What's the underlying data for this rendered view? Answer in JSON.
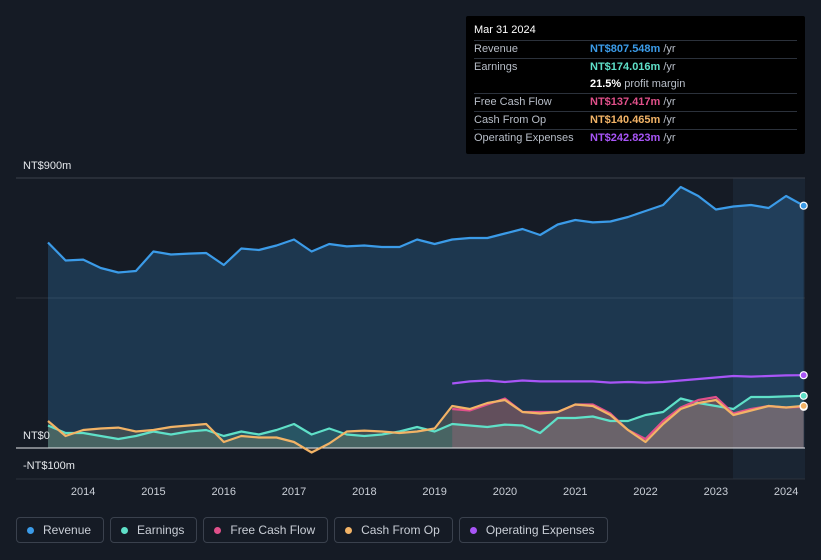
{
  "tooltip": {
    "date": "Mar 31 2024",
    "rows": [
      {
        "label": "Revenue",
        "value": "NT$807.548m",
        "unit": "/yr",
        "color": "#3b9be8"
      },
      {
        "label": "Earnings",
        "value": "NT$174.016m",
        "unit": "/yr",
        "color": "#5fe0c8"
      },
      {
        "label": "",
        "value": "21.5%",
        "unit": "profit margin",
        "color": "#ffffff"
      },
      {
        "label": "Free Cash Flow",
        "value": "NT$137.417m",
        "unit": "/yr",
        "color": "#e0508a"
      },
      {
        "label": "Cash From Op",
        "value": "NT$140.465m",
        "unit": "/yr",
        "color": "#f2b366"
      },
      {
        "label": "Operating Expenses",
        "value": "NT$242.823m",
        "unit": "/yr",
        "color": "#a855f7"
      }
    ]
  },
  "legend": [
    {
      "label": "Revenue",
      "color": "#3b9be8"
    },
    {
      "label": "Earnings",
      "color": "#5fe0c8"
    },
    {
      "label": "Free Cash Flow",
      "color": "#e0508a"
    },
    {
      "label": "Cash From Op",
      "color": "#f2b366"
    },
    {
      "label": "Operating Expenses",
      "color": "#a855f7"
    }
  ],
  "chart_data": {
    "type": "area",
    "title": "",
    "xlabel": "",
    "ylabel": "",
    "ylim": [
      -100,
      900
    ],
    "y_tick_labels": [
      "NT$900m",
      "NT$0",
      "-NT$100m"
    ],
    "x_tick_labels": [
      "2014",
      "2015",
      "2016",
      "2017",
      "2018",
      "2019",
      "2020",
      "2021",
      "2022",
      "2023",
      "2024"
    ],
    "forecast_shaded_from": 2023.25,
    "series": [
      {
        "name": "Revenue",
        "color": "#3b9be8",
        "x": [
          2013.5,
          2013.75,
          2014.0,
          2014.25,
          2014.5,
          2014.75,
          2015.0,
          2015.25,
          2015.5,
          2015.75,
          2016.0,
          2016.25,
          2016.5,
          2016.75,
          2017.0,
          2017.25,
          2017.5,
          2017.75,
          2018.0,
          2018.25,
          2018.5,
          2018.75,
          2019.0,
          2019.25,
          2019.5,
          2019.75,
          2020.0,
          2020.25,
          2020.5,
          2020.75,
          2021.0,
          2021.25,
          2021.5,
          2021.75,
          2022.0,
          2022.25,
          2022.5,
          2022.75,
          2023.0,
          2023.25,
          2023.5,
          2023.75,
          2024.0,
          2024.25
        ],
        "values": [
          685,
          625,
          628,
          600,
          585,
          590,
          655,
          645,
          648,
          650,
          610,
          665,
          660,
          675,
          695,
          655,
          680,
          672,
          675,
          670,
          670,
          695,
          680,
          695,
          700,
          700,
          715,
          730,
          710,
          745,
          760,
          752,
          755,
          770,
          790,
          810,
          870,
          840,
          795,
          805,
          810,
          800,
          840,
          807.548
        ]
      },
      {
        "name": "Earnings",
        "color": "#5fe0c8",
        "x": [
          2013.5,
          2013.75,
          2014.0,
          2014.25,
          2014.5,
          2014.75,
          2015.0,
          2015.25,
          2015.5,
          2015.75,
          2016.0,
          2016.25,
          2016.5,
          2016.75,
          2017.0,
          2017.25,
          2017.5,
          2017.75,
          2018.0,
          2018.25,
          2018.5,
          2018.75,
          2019.0,
          2019.25,
          2019.5,
          2019.75,
          2020.0,
          2020.25,
          2020.5,
          2020.75,
          2021.0,
          2021.25,
          2021.5,
          2021.75,
          2022.0,
          2022.25,
          2022.5,
          2022.75,
          2023.0,
          2023.25,
          2023.5,
          2023.75,
          2024.0,
          2024.25
        ],
        "values": [
          75,
          50,
          50,
          40,
          30,
          40,
          55,
          45,
          55,
          60,
          40,
          55,
          45,
          60,
          80,
          45,
          65,
          45,
          40,
          45,
          55,
          70,
          55,
          80,
          75,
          70,
          78,
          75,
          50,
          100,
          100,
          105,
          90,
          90,
          110,
          120,
          165,
          150,
          140,
          130,
          170,
          170,
          172,
          174.016
        ]
      },
      {
        "name": "Free Cash Flow",
        "color": "#e0508a",
        "x": [
          2019.25,
          2019.5,
          2019.75,
          2020.0,
          2020.25,
          2020.5,
          2020.75,
          2021.0,
          2021.25,
          2021.5,
          2021.75,
          2022.0,
          2022.25,
          2022.5,
          2022.75,
          2023.0,
          2023.25,
          2023.5,
          2023.75,
          2024.0,
          2024.25
        ],
        "values": [
          130,
          125,
          145,
          165,
          120,
          120,
          120,
          145,
          145,
          115,
          60,
          30,
          90,
          135,
          160,
          170,
          115,
          130,
          140,
          135,
          137.417
        ]
      },
      {
        "name": "Cash From Op",
        "color": "#f2b366",
        "x": [
          2013.5,
          2013.75,
          2014.0,
          2014.25,
          2014.5,
          2014.75,
          2015.0,
          2015.25,
          2015.5,
          2015.75,
          2016.0,
          2016.25,
          2016.5,
          2016.75,
          2017.0,
          2017.25,
          2017.5,
          2017.75,
          2018.0,
          2018.25,
          2018.5,
          2018.75,
          2019.0,
          2019.25,
          2019.5,
          2019.75,
          2020.0,
          2020.25,
          2020.5,
          2020.75,
          2021.0,
          2021.25,
          2021.5,
          2021.75,
          2022.0,
          2022.25,
          2022.5,
          2022.75,
          2023.0,
          2023.25,
          2023.5,
          2023.75,
          2024.0,
          2024.25
        ],
        "values": [
          90,
          40,
          60,
          65,
          68,
          55,
          60,
          70,
          75,
          80,
          20,
          40,
          35,
          35,
          20,
          -15,
          15,
          55,
          58,
          55,
          50,
          55,
          65,
          140,
          130,
          150,
          160,
          120,
          115,
          120,
          145,
          140,
          110,
          60,
          20,
          80,
          130,
          150,
          160,
          110,
          125,
          140,
          135,
          140.465
        ]
      },
      {
        "name": "Operating Expenses",
        "color": "#a855f7",
        "x": [
          2019.25,
          2019.5,
          2019.75,
          2020.0,
          2020.25,
          2020.5,
          2020.75,
          2021.0,
          2021.25,
          2021.5,
          2021.75,
          2022.0,
          2022.25,
          2022.5,
          2022.75,
          2023.0,
          2023.25,
          2023.5,
          2023.75,
          2024.0,
          2024.25
        ],
        "values": [
          215,
          222,
          225,
          220,
          225,
          222,
          222,
          222,
          222,
          218,
          220,
          218,
          220,
          225,
          230,
          235,
          240,
          238,
          240,
          242,
          242.823
        ]
      }
    ]
  }
}
